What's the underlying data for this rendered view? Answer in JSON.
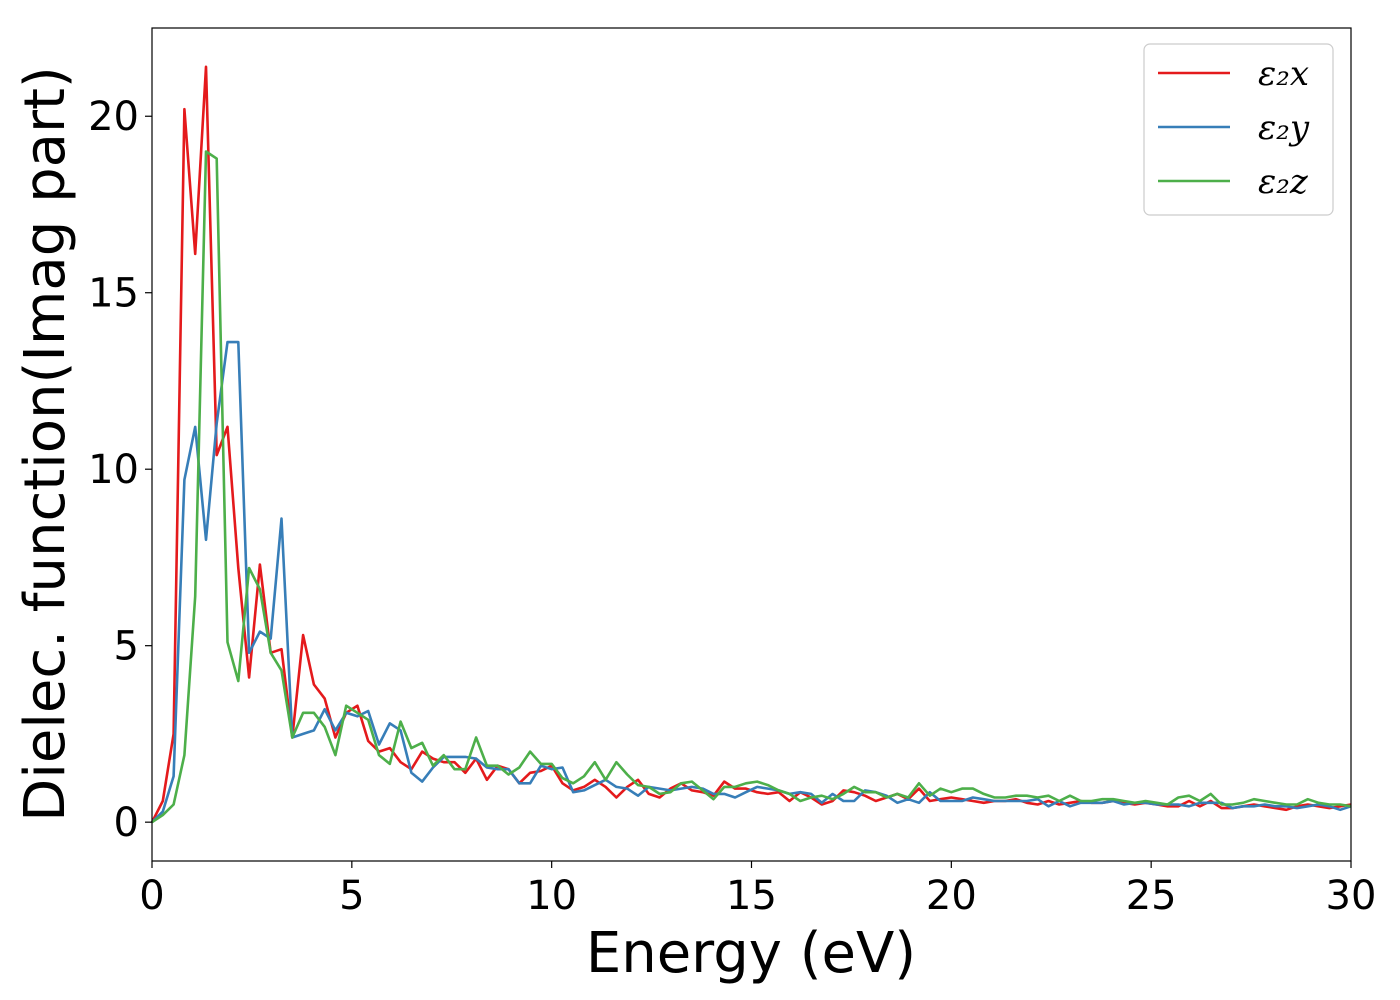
{
  "chart_data": {
    "type": "line",
    "xlabel": "Energy (eV)",
    "ylabel": "Dielec. function(Imag part)",
    "xlim": [
      0,
      30
    ],
    "ylim": [
      -1.1,
      22.5
    ],
    "xticks": [
      0,
      5,
      10,
      15,
      20,
      25,
      30
    ],
    "yticks": [
      0,
      5,
      10,
      15,
      20
    ],
    "grid": false,
    "legend_position": "top-right",
    "x": [
      0,
      0.27,
      0.54,
      0.81,
      1.08,
      1.35,
      1.62,
      1.89,
      2.16,
      2.43,
      2.7,
      2.97,
      3.24,
      3.51,
      3.78,
      4.05,
      4.32,
      4.59,
      4.86,
      5.14,
      5.41,
      5.68,
      5.95,
      6.22,
      6.49,
      6.76,
      7.03,
      7.3,
      7.57,
      7.84,
      8.11,
      8.38,
      8.65,
      8.92,
      9.19,
      9.46,
      9.73,
      10,
      10.27,
      10.54,
      10.81,
      11.08,
      11.35,
      11.62,
      11.89,
      12.16,
      12.43,
      12.7,
      12.97,
      13.24,
      13.51,
      13.78,
      14.05,
      14.32,
      14.59,
      14.86,
      15.14,
      15.41,
      15.68,
      15.95,
      16.22,
      16.49,
      16.76,
      17.03,
      17.3,
      17.57,
      17.84,
      18.11,
      18.38,
      18.65,
      18.92,
      19.19,
      19.46,
      19.73,
      20,
      20.27,
      20.54,
      20.81,
      21.08,
      21.35,
      21.62,
      21.89,
      22.16,
      22.43,
      22.7,
      22.97,
      23.24,
      23.51,
      23.78,
      24.05,
      24.32,
      24.59,
      24.86,
      25.14,
      25.41,
      25.68,
      25.95,
      26.22,
      26.49,
      26.76,
      27.03,
      27.3,
      27.57,
      27.84,
      28.11,
      28.38,
      28.65,
      28.92,
      29.19,
      29.46,
      29.73,
      30
    ],
    "series": [
      {
        "name": "ε₂x",
        "color": "#e41a1c",
        "values": [
          0,
          0.6,
          2.5,
          20.2,
          16.1,
          21.4,
          10.4,
          11.2,
          7.2,
          4.1,
          7.3,
          4.8,
          4.9,
          2.4,
          5.3,
          3.9,
          3.5,
          2.4,
          3.1,
          3.3,
          2.3,
          2.0,
          2.1,
          1.7,
          1.5,
          2.0,
          1.8,
          1.7,
          1.7,
          1.4,
          1.8,
          1.2,
          1.6,
          1.5,
          1.1,
          1.4,
          1.45,
          1.6,
          1.1,
          0.9,
          1.0,
          1.2,
          1.0,
          0.7,
          1.0,
          1.2,
          0.8,
          0.7,
          0.95,
          1.1,
          0.9,
          0.85,
          0.75,
          1.15,
          0.95,
          0.95,
          0.85,
          0.8,
          0.85,
          0.6,
          0.85,
          0.7,
          0.5,
          0.6,
          0.9,
          0.85,
          0.75,
          0.6,
          0.7,
          0.8,
          0.65,
          0.95,
          0.6,
          0.65,
          0.7,
          0.65,
          0.6,
          0.55,
          0.6,
          0.6,
          0.65,
          0.55,
          0.5,
          0.6,
          0.5,
          0.55,
          0.6,
          0.55,
          0.55,
          0.6,
          0.55,
          0.5,
          0.55,
          0.5,
          0.45,
          0.45,
          0.6,
          0.45,
          0.6,
          0.4,
          0.4,
          0.45,
          0.5,
          0.45,
          0.4,
          0.35,
          0.45,
          0.5,
          0.45,
          0.4,
          0.45,
          0.5
        ]
      },
      {
        "name": "ε₂y",
        "color": "#377eb8",
        "values": [
          0,
          0.3,
          1.3,
          9.7,
          11.2,
          8.0,
          11.3,
          13.6,
          13.6,
          4.8,
          5.4,
          5.2,
          8.6,
          2.4,
          2.5,
          2.6,
          3.2,
          2.6,
          3.1,
          3.0,
          3.15,
          2.2,
          2.8,
          2.6,
          1.4,
          1.15,
          1.55,
          1.85,
          1.85,
          1.85,
          1.8,
          1.55,
          1.5,
          1.5,
          1.1,
          1.1,
          1.6,
          1.5,
          1.55,
          0.85,
          0.9,
          1.05,
          1.2,
          1.0,
          0.95,
          0.75,
          1.0,
          0.95,
          0.9,
          0.95,
          1.0,
          0.95,
          0.8,
          0.8,
          0.7,
          0.85,
          1.0,
          0.95,
          0.9,
          0.8,
          0.85,
          0.8,
          0.55,
          0.8,
          0.6,
          0.6,
          0.9,
          0.85,
          0.75,
          0.55,
          0.65,
          0.55,
          0.85,
          0.6,
          0.6,
          0.6,
          0.7,
          0.65,
          0.6,
          0.6,
          0.6,
          0.6,
          0.65,
          0.45,
          0.6,
          0.45,
          0.55,
          0.55,
          0.55,
          0.6,
          0.5,
          0.55,
          0.55,
          0.5,
          0.5,
          0.5,
          0.45,
          0.55,
          0.55,
          0.55,
          0.4,
          0.45,
          0.45,
          0.5,
          0.45,
          0.45,
          0.4,
          0.45,
          0.5,
          0.45,
          0.35,
          0.45
        ]
      },
      {
        "name": "ε₂z",
        "color": "#4daf4a",
        "values": [
          0,
          0.2,
          0.5,
          1.9,
          6.4,
          19.0,
          18.8,
          5.1,
          4.0,
          7.2,
          6.6,
          4.8,
          4.3,
          2.4,
          3.1,
          3.1,
          2.7,
          1.9,
          3.3,
          3.1,
          2.9,
          1.9,
          1.65,
          2.85,
          2.1,
          2.25,
          1.6,
          1.9,
          1.5,
          1.5,
          2.4,
          1.6,
          1.6,
          1.35,
          1.55,
          2.0,
          1.65,
          1.65,
          1.25,
          1.1,
          1.3,
          1.7,
          1.2,
          1.7,
          1.35,
          1.05,
          1.0,
          0.8,
          0.85,
          1.1,
          1.15,
          0.9,
          0.65,
          1.0,
          1.0,
          1.1,
          1.15,
          1.05,
          0.9,
          0.8,
          0.6,
          0.7,
          0.75,
          0.65,
          0.8,
          1.0,
          0.85,
          0.85,
          0.7,
          0.8,
          0.7,
          1.1,
          0.75,
          0.95,
          0.85,
          0.95,
          0.95,
          0.8,
          0.7,
          0.7,
          0.75,
          0.75,
          0.7,
          0.75,
          0.6,
          0.75,
          0.6,
          0.6,
          0.65,
          0.65,
          0.6,
          0.55,
          0.6,
          0.55,
          0.5,
          0.7,
          0.75,
          0.6,
          0.8,
          0.5,
          0.5,
          0.55,
          0.65,
          0.6,
          0.55,
          0.5,
          0.5,
          0.65,
          0.55,
          0.5,
          0.5,
          0.45
        ]
      }
    ]
  }
}
